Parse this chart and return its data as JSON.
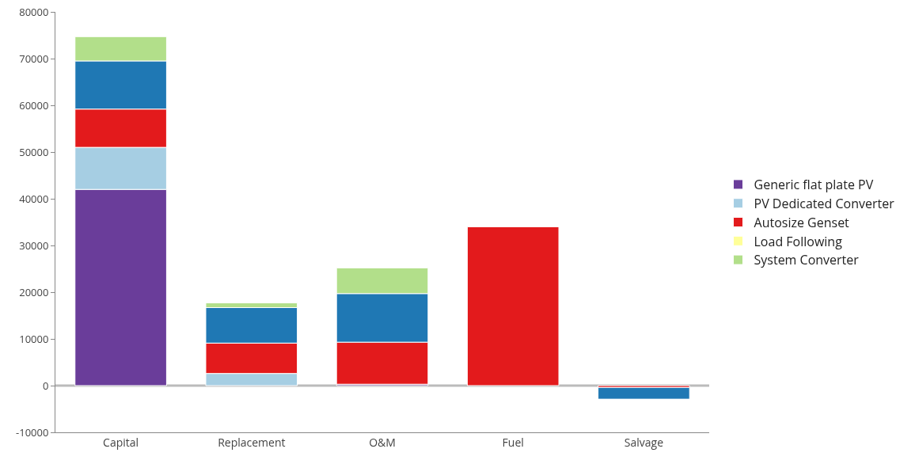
{
  "chart_data": {
    "type": "bar",
    "stacked": true,
    "categories": [
      "Capital",
      "Replacement",
      "O&M",
      "Fuel",
      "Salvage"
    ],
    "series": [
      {
        "name": "Generic flat plate PV",
        "color": "#6a3d9a",
        "values": [
          42000,
          null,
          300,
          null,
          null
        ]
      },
      {
        "name": "PV Dedicated Converter",
        "color": "#a6cee3",
        "values": [
          9000,
          2600,
          null,
          null,
          null
        ]
      },
      {
        "name": "Autosize Genset",
        "color": "#e31a1c",
        "values": [
          8200,
          6500,
          9000,
          34000,
          -400
        ]
      },
      {
        "name": "Load Following",
        "color": "#ffff99",
        "values": [
          null,
          null,
          null,
          null,
          null
        ]
      },
      {
        "color": "#1f78b4",
        "values": [
          10300,
          7600,
          10400,
          null,
          -2500
        ]
      },
      {
        "name": "System Converter",
        "color": "#b2df8a",
        "values": [
          5200,
          1000,
          5500,
          null,
          null
        ]
      }
    ],
    "ylim": [
      -10000,
      80000
    ],
    "yticks": [
      -10000,
      0,
      10000,
      20000,
      30000,
      40000,
      50000,
      60000,
      70000,
      80000
    ],
    "grid": false,
    "legend": "right",
    "ref_lines": [
      {
        "axis": "y",
        "value": 0,
        "color": "#bbbbbb"
      }
    ]
  }
}
